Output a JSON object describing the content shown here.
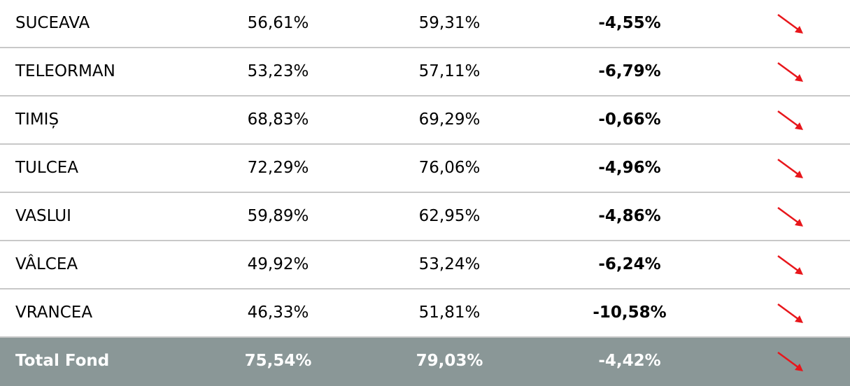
{
  "table": {
    "rows": [
      [
        "SUCEAVA",
        "56,61%",
        "59,31%",
        "-4,55%"
      ],
      [
        "TELEORMAN",
        "53,23%",
        "57,11%",
        "-6,79%"
      ],
      [
        "TIMIȘ",
        "68,83%",
        "69,29%",
        "-0,66%"
      ],
      [
        "TULCEA",
        "72,29%",
        "76,06%",
        "-4,96%"
      ],
      [
        "VASLUI",
        "59,89%",
        "62,95%",
        "-4,86%"
      ],
      [
        "VÂLCEA",
        "49,92%",
        "53,24%",
        "-6,24%"
      ],
      [
        "VRANCEA",
        "46,33%",
        "51,81%",
        "-10,58%"
      ]
    ],
    "total": [
      "Total Fond",
      "75,54%",
      "79,03%",
      "-4,42%"
    ]
  }
}
